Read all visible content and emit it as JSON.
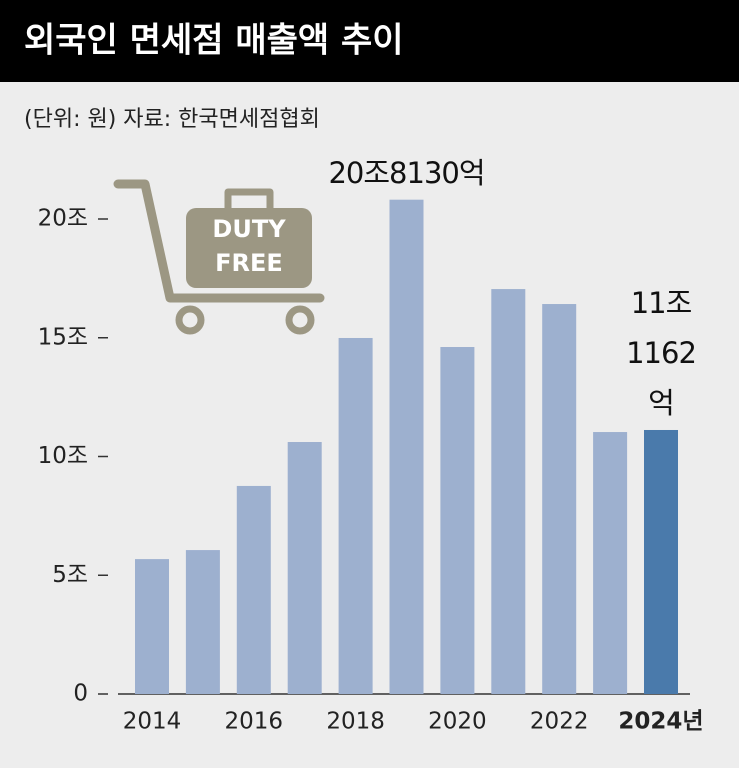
{
  "chart_data": {
    "type": "bar",
    "title": "외국인 면세점 매출액 추이",
    "subtitle": "(단위: 원)  자료: 한국면세점협회",
    "icon_text": [
      "DUTY",
      "FREE"
    ],
    "categories": [
      "2014",
      null,
      "2016",
      null,
      "2018",
      null,
      "2020",
      null,
      "2022",
      null,
      "2024년"
    ],
    "values": [
      5.68,
      6.06,
      8.76,
      10.61,
      14.99,
      20.813,
      14.61,
      17.05,
      16.42,
      11.03,
      11.1162
    ],
    "value_labels": [
      null,
      null,
      null,
      null,
      null,
      "20조8130억",
      null,
      null,
      null,
      null,
      "11조\n1162억"
    ],
    "color": "#9db0cf",
    "highlight_color": "#4a7aab",
    "highlight_index": 10,
    "ylim": [
      0,
      22
    ],
    "yticks": [
      0,
      {
        "value": 5,
        "label": "5조"
      },
      {
        "value": 10,
        "label": "10조"
      },
      {
        "value": 15,
        "label": "15조"
      },
      {
        "value": 20,
        "label": "20조"
      }
    ],
    "grid": false
  }
}
